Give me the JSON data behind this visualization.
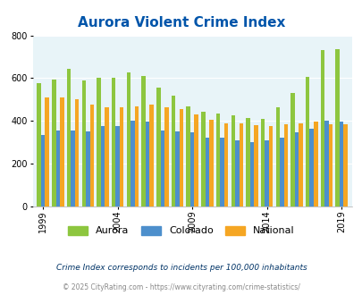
{
  "title": "Aurora Violent Crime Index",
  "years": [
    1999,
    2000,
    2001,
    2002,
    2003,
    2004,
    2005,
    2006,
    2007,
    2008,
    2009,
    2010,
    2011,
    2012,
    2013,
    2014,
    2015,
    2016,
    2017,
    2018,
    2019,
    2020
  ],
  "aurora": [
    575,
    595,
    645,
    590,
    600,
    600,
    625,
    610,
    555,
    520,
    470,
    445,
    435,
    425,
    415,
    410,
    465,
    530,
    605,
    730,
    735,
    null
  ],
  "colorado": [
    335,
    355,
    355,
    350,
    375,
    375,
    400,
    395,
    355,
    350,
    345,
    320,
    320,
    310,
    300,
    310,
    320,
    345,
    365,
    400,
    395,
    null
  ],
  "national": [
    510,
    510,
    500,
    475,
    465,
    465,
    470,
    475,
    465,
    455,
    430,
    405,
    390,
    390,
    380,
    375,
    385,
    390,
    395,
    385,
    385,
    null
  ],
  "aurora_color": "#8dc63f",
  "colorado_color": "#4d8fcc",
  "national_color": "#f5a623",
  "plot_bg": "#e8f4f8",
  "ylim": [
    0,
    800
  ],
  "yticks": [
    0,
    200,
    400,
    600,
    800
  ],
  "xtick_years": [
    1999,
    2004,
    2009,
    2014,
    2019
  ],
  "legend_labels": [
    "Aurora",
    "Colorado",
    "National"
  ],
  "footnote1": "Crime Index corresponds to incidents per 100,000 inhabitants",
  "footnote2": "© 2025 CityRating.com - https://www.cityrating.com/crime-statistics/",
  "title_color": "#0055aa",
  "footnote1_color": "#003366",
  "footnote2_color": "#888888",
  "bar_width": 0.27
}
